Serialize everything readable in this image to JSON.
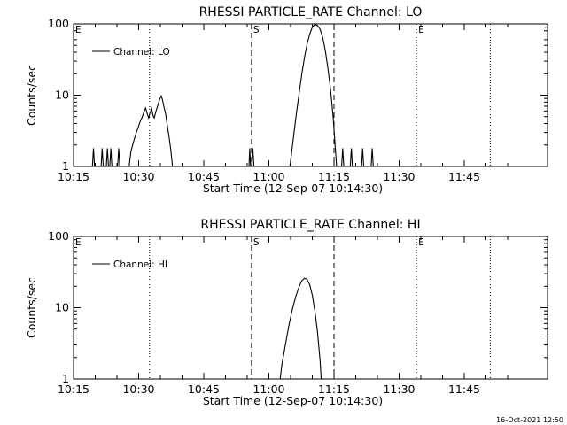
{
  "footer": {
    "timestamp": "16-Oct-2021 12:50"
  },
  "chart_data": [
    {
      "type": "line",
      "title": "RHESSI PARTICLE_RATE Channel: LO",
      "xlabel": "Start Time (12-Sep-07 10:14:30)",
      "ylabel": "Counts/sec",
      "x_ticks": [
        "10:15",
        "10:30",
        "10:45",
        "11:00",
        "11:15",
        "11:30",
        "11:45"
      ],
      "y_ticks": [
        "1",
        "10",
        "100"
      ],
      "y_scale": "log",
      "ylim": [
        1,
        100
      ],
      "legend": {
        "label": "Channel: LO",
        "position": "top-left"
      },
      "markers": [
        {
          "label": "E",
          "minute": 0,
          "style": "none"
        },
        {
          "label": "",
          "minute": 17.5,
          "style": "dotted"
        },
        {
          "label": "S",
          "minute": 41,
          "style": "dashed"
        },
        {
          "label": "",
          "minute": 60,
          "style": "dashed"
        },
        {
          "label": "E",
          "minute": 79,
          "style": "dotted"
        },
        {
          "label": "",
          "minute": 96,
          "style": "dotted"
        }
      ],
      "series": [
        {
          "name": "Channel: LO",
          "segments": [
            [
              [
                4.2,
                0.7
              ],
              [
                4.6,
                1.8
              ],
              [
                5,
                0.7
              ]
            ],
            [
              [
                6.2,
                0.7
              ],
              [
                6.6,
                1.8
              ],
              [
                7,
                0.7
              ]
            ],
            [
              [
                7.4,
                0.7
              ],
              [
                7.8,
                1.8
              ],
              [
                8.2,
                0.7
              ],
              [
                8.6,
                1.8
              ],
              [
                9,
                0.7
              ]
            ],
            [
              [
                10,
                0.7
              ],
              [
                10.4,
                1.8
              ],
              [
                10.8,
                0.7
              ]
            ],
            [
              [
                12.5,
                0.7
              ],
              [
                13.2,
                1.6
              ],
              [
                13.8,
                2.2
              ],
              [
                14.3,
                2.8
              ],
              [
                14.8,
                3.4
              ],
              [
                15.3,
                4.2
              ],
              [
                15.8,
                4.9
              ],
              [
                16.2,
                5.8
              ],
              [
                16.6,
                6.6
              ],
              [
                17,
                5.4
              ],
              [
                17.3,
                4.8
              ],
              [
                17.6,
                5.6
              ],
              [
                18,
                6.5
              ],
              [
                18.3,
                5.2
              ],
              [
                18.6,
                4.8
              ],
              [
                19,
                6.0
              ],
              [
                19.4,
                7.2
              ],
              [
                19.8,
                8.6
              ],
              [
                20.2,
                9.8
              ],
              [
                20.5,
                8.6
              ],
              [
                20.8,
                7.0
              ],
              [
                21.2,
                5.5
              ],
              [
                21.6,
                3.8
              ],
              [
                22,
                2.6
              ],
              [
                22.4,
                1.7
              ],
              [
                22.8,
                1.0
              ],
              [
                23.1,
                0.7
              ]
            ],
            [
              [
                40.3,
                0.7
              ],
              [
                40.6,
                1.8
              ],
              [
                40.9,
                0.7
              ],
              [
                41.3,
                1.8
              ],
              [
                41.7,
                0.7
              ]
            ],
            [
              [
                49.5,
                0.7
              ],
              [
                50.2,
                1.5
              ],
              [
                50.8,
                3.0
              ],
              [
                51.4,
                6.0
              ],
              [
                52,
                11
              ],
              [
                52.6,
                20
              ],
              [
                53.2,
                34
              ],
              [
                53.8,
                52
              ],
              [
                54.4,
                72
              ],
              [
                55,
                90
              ],
              [
                55.6,
                98
              ],
              [
                56.2,
                95
              ],
              [
                56.8,
                84
              ],
              [
                57.4,
                64
              ],
              [
                58,
                42
              ],
              [
                58.6,
                24
              ],
              [
                59.2,
                12
              ],
              [
                59.8,
                5
              ],
              [
                60.2,
                2.2
              ],
              [
                60.6,
                1.0
              ],
              [
                60.9,
                0.7
              ]
            ],
            [
              [
                61.6,
                0.7
              ],
              [
                62,
                1.8
              ],
              [
                62.4,
                0.7
              ]
            ],
            [
              [
                63.6,
                0.7
              ],
              [
                64,
                1.8
              ],
              [
                64.4,
                0.7
              ]
            ],
            [
              [
                66.2,
                0.7
              ],
              [
                66.6,
                1.8
              ],
              [
                67,
                0.7
              ]
            ],
            [
              [
                68.4,
                0.7
              ],
              [
                68.8,
                1.8
              ],
              [
                69.2,
                0.7
              ]
            ]
          ]
        }
      ]
    },
    {
      "type": "line",
      "title": "RHESSI PARTICLE_RATE Channel: HI",
      "xlabel": "Start Time (12-Sep-07 10:14:30)",
      "ylabel": "Counts/sec",
      "x_ticks": [
        "10:15",
        "10:30",
        "10:45",
        "11:00",
        "11:15",
        "11:30",
        "11:45"
      ],
      "y_ticks": [
        "1",
        "10",
        "100"
      ],
      "y_scale": "log",
      "ylim": [
        1,
        100
      ],
      "legend": {
        "label": "Channel: HI",
        "position": "top-left"
      },
      "markers": [
        {
          "label": "E",
          "minute": 0,
          "style": "none"
        },
        {
          "label": "",
          "minute": 17.5,
          "style": "dotted"
        },
        {
          "label": "S",
          "minute": 41,
          "style": "dashed"
        },
        {
          "label": "",
          "minute": 60,
          "style": "dashed"
        },
        {
          "label": "E",
          "minute": 79,
          "style": "dotted"
        },
        {
          "label": "",
          "minute": 96,
          "style": "dotted"
        }
      ],
      "series": [
        {
          "name": "Channel: HI",
          "segments": [
            [
              [
                47.3,
                0.7
              ],
              [
                48,
                1.6
              ],
              [
                48.8,
                3.0
              ],
              [
                49.6,
                5.6
              ],
              [
                50.4,
                9.5
              ],
              [
                51.2,
                14.5
              ],
              [
                52,
                20
              ],
              [
                52.6,
                24
              ],
              [
                53.2,
                26
              ],
              [
                53.8,
                25
              ],
              [
                54.4,
                21
              ],
              [
                55,
                15
              ],
              [
                55.6,
                9
              ],
              [
                56.2,
                4.5
              ],
              [
                56.8,
                1.8
              ],
              [
                57.2,
                0.7
              ]
            ]
          ]
        }
      ]
    }
  ]
}
